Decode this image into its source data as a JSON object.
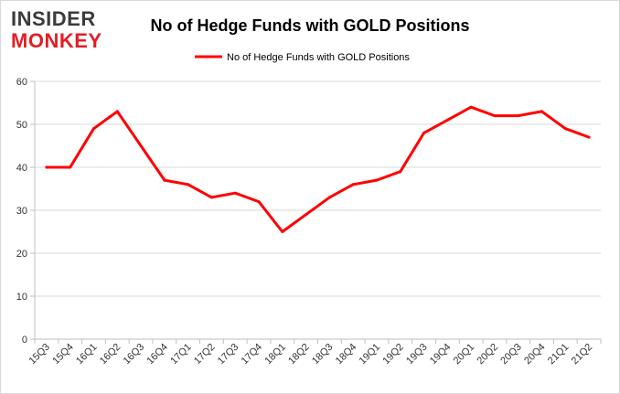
{
  "brand": {
    "line1": "INSIDER",
    "line2": "MONKEY",
    "dark_color": "#3b3b3b",
    "accent_color": "#e31e24"
  },
  "chart_data": {
    "type": "line",
    "title": "No of Hedge Funds with GOLD Positions",
    "legend": "No of Hedge Funds with GOLD Positions",
    "legend_position": "top",
    "xlabel": "",
    "ylabel": "",
    "ylim": [
      0,
      60
    ],
    "yticks": [
      0,
      10,
      20,
      30,
      40,
      50,
      60
    ],
    "grid": true,
    "line_color": "#ff0000",
    "categories": [
      "15Q3",
      "15Q4",
      "16Q1",
      "16Q2",
      "16Q3",
      "16Q4",
      "17Q1",
      "17Q2",
      "17Q3",
      "17Q4",
      "18Q1",
      "18Q2",
      "18Q3",
      "18Q4",
      "19Q1",
      "19Q2",
      "19Q3",
      "19Q4",
      "20Q1",
      "20Q2",
      "20Q3",
      "20Q4",
      "21Q1",
      "21Q2"
    ],
    "series": [
      {
        "name": "No of Hedge Funds with GOLD Positions",
        "values": [
          40,
          40,
          49,
          53,
          45,
          37,
          36,
          33,
          34,
          32,
          25,
          29,
          33,
          36,
          37,
          39,
          48,
          51,
          54,
          52,
          52,
          53,
          49,
          47
        ]
      }
    ]
  }
}
